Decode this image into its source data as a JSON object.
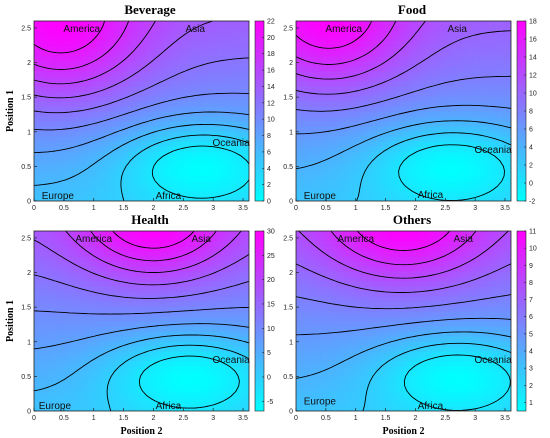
{
  "chart_data": [
    {
      "type": "heatmap",
      "title": "Beverage",
      "xlabel": "",
      "ylabel": "Position 1",
      "xlim": [
        0,
        3.6
      ],
      "ylim": [
        0,
        2.6
      ],
      "xticks": [
        "0",
        "0.5",
        "1",
        "1.5",
        "2",
        "2.5",
        "3",
        "3.5"
      ],
      "yticks": [
        "0",
        "0.5",
        "1",
        "1.5",
        "2",
        "2.5"
      ],
      "colorbar": {
        "min": 0,
        "max": 22,
        "ticks": [
          "0",
          "2",
          "4",
          "6",
          "8",
          "10",
          "12",
          "14",
          "16",
          "18",
          "20",
          "22"
        ]
      },
      "annotations": [
        {
          "text": "America",
          "x": 0.8,
          "y": 2.5
        },
        {
          "text": "Asia",
          "x": 2.7,
          "y": 2.5
        },
        {
          "text": "Oceania",
          "x": 3.3,
          "y": 0.85
        },
        {
          "text": "Europe",
          "x": 0.4,
          "y": 0.05
        },
        {
          "text": "Africa",
          "x": 2.25,
          "y": 0.05
        }
      ]
    },
    {
      "type": "heatmap",
      "title": "Food",
      "xlabel": "",
      "ylabel": "",
      "xlim": [
        0,
        3.6
      ],
      "ylim": [
        0,
        2.6
      ],
      "xticks": [
        "0",
        "0.5",
        "1",
        "1.5",
        "2",
        "2.5",
        "3",
        "3.5"
      ],
      "yticks": [
        "0",
        "0.5",
        "1",
        "1.5",
        "2",
        "2.5"
      ],
      "colorbar": {
        "min": -2,
        "max": 18,
        "ticks": [
          "-2",
          "0",
          "2",
          "4",
          "6",
          "8",
          "10",
          "12",
          "14",
          "16",
          "18"
        ]
      },
      "annotations": [
        {
          "text": "America",
          "x": 0.8,
          "y": 2.5
        },
        {
          "text": "Asia",
          "x": 2.7,
          "y": 2.5
        },
        {
          "text": "Oceania",
          "x": 3.3,
          "y": 0.75
        },
        {
          "text": "Europe",
          "x": 0.4,
          "y": 0.05
        },
        {
          "text": "Africa",
          "x": 2.25,
          "y": 0.1
        }
      ]
    },
    {
      "type": "heatmap",
      "title": "Health",
      "xlabel": "Position 2",
      "ylabel": "Position 1",
      "xlim": [
        0,
        3.6
      ],
      "ylim": [
        0,
        2.6
      ],
      "xticks": [
        "0",
        "0.5",
        "1",
        "1.5",
        "2",
        "2.5",
        "3",
        "3.5"
      ],
      "yticks": [
        "0",
        "0.5",
        "1",
        "1.5",
        "2",
        "2.5"
      ],
      "colorbar": {
        "min": -7,
        "max": 30,
        "ticks": [
          "-5",
          "0",
          "5",
          "10",
          "15",
          "20",
          "25",
          "30"
        ]
      },
      "annotations": [
        {
          "text": "America",
          "x": 1.0,
          "y": 2.5
        },
        {
          "text": "Asia",
          "x": 2.8,
          "y": 2.5
        },
        {
          "text": "Oceania",
          "x": 3.3,
          "y": 0.75
        },
        {
          "text": "Europe",
          "x": 0.35,
          "y": 0.05
        },
        {
          "text": "Africa",
          "x": 2.25,
          "y": 0.05
        }
      ]
    },
    {
      "type": "heatmap",
      "title": "Others",
      "xlabel": "Position 2",
      "ylabel": "",
      "xlim": [
        0,
        3.6
      ],
      "ylim": [
        0,
        2.6
      ],
      "xticks": [
        "0",
        "0.5",
        "1",
        "1.5",
        "2",
        "2.5",
        "3",
        "3.5"
      ],
      "yticks": [
        "0",
        "0.5",
        "1",
        "1.5",
        "2",
        "2.5"
      ],
      "colorbar": {
        "min": 0.5,
        "max": 11,
        "ticks": [
          "1",
          "2",
          "3",
          "4",
          "5",
          "6",
          "7",
          "8",
          "9",
          "10",
          "11"
        ]
      },
      "annotations": [
        {
          "text": "America",
          "x": 1.0,
          "y": 2.5
        },
        {
          "text": "Asia",
          "x": 2.8,
          "y": 2.5
        },
        {
          "text": "Oceania",
          "x": 3.3,
          "y": 0.75
        },
        {
          "text": "Europe",
          "x": 0.4,
          "y": 0.15
        },
        {
          "text": "Africa",
          "x": 2.25,
          "y": 0.05
        }
      ]
    }
  ],
  "colormap": {
    "low": "#00ffff",
    "high": "#ff00ff"
  }
}
